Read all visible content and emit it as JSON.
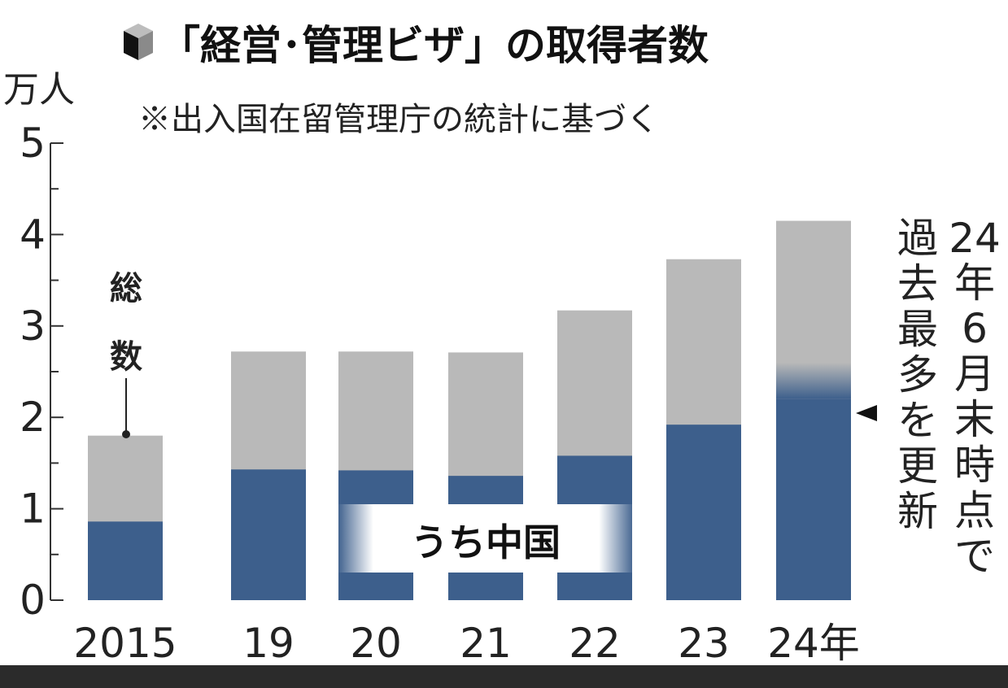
{
  "chart_data": {
    "type": "bar",
    "title": "「経営･管理ビザ」の取得者数",
    "subtitle": "※出入国在留管理庁の統計に基づく",
    "ylabel": "万人",
    "ylim": [
      0,
      5
    ],
    "yticks": [
      "0",
      "1",
      "2",
      "3",
      "4",
      "5"
    ],
    "categories": [
      "2015",
      "19",
      "20",
      "21",
      "22",
      "23",
      "24年"
    ],
    "series": [
      {
        "name": "総数",
        "values": [
          1.8,
          2.72,
          2.72,
          2.71,
          3.17,
          3.73,
          4.15
        ],
        "color": "#b9b9b9"
      },
      {
        "name": "うち中国",
        "values": [
          0.86,
          1.43,
          1.42,
          1.36,
          1.58,
          1.92,
          2.2
        ],
        "color": "#3d5f8c"
      }
    ],
    "annotations": {
      "total_label": "総数",
      "china_label": "うち中国",
      "note": "24年6月末時点で過去最多を更新",
      "note_line1": "24年6月末時点で",
      "note_line2": "過去最多を更新"
    },
    "grid": false
  }
}
